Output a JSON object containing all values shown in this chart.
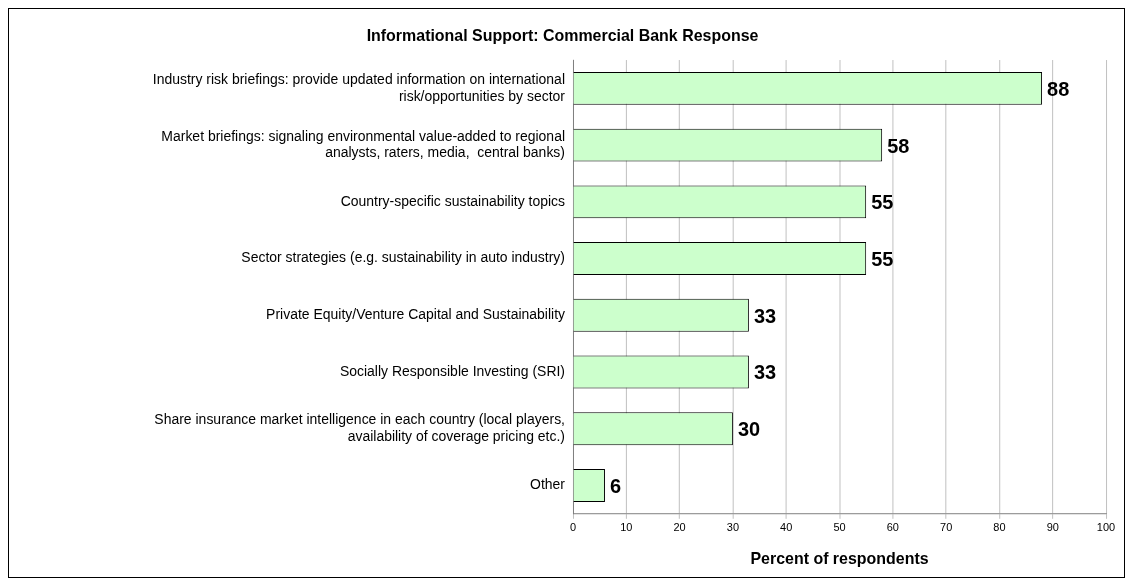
{
  "chart_data": {
    "type": "bar",
    "orientation": "horizontal",
    "title": "Informational Support: Commercial Bank Response",
    "xlabel": "Percent of respondents",
    "categories": [
      "Industry risk briefings: provide updated information on international risk/opportunities by sector",
      "Market briefings: signaling environmental value-added to regional analysts, raters, media,  central banks)",
      "Country-specific sustainability topics",
      "Sector strategies (e.g. sustainability in auto industry)",
      "Private Equity/Venture Capital and Sustainability",
      "Socially Responsible Investing (SRI)",
      "Share insurance market intelligence in each country (local players, availability of coverage pricing etc.)",
      "Other"
    ],
    "values": [
      88,
      58,
      55,
      55,
      33,
      33,
      30,
      6
    ],
    "color": "#ccffcc",
    "xlim": [
      0,
      100
    ],
    "xticks": [
      0,
      10,
      20,
      30,
      40,
      50,
      60,
      70,
      80,
      90,
      100
    ],
    "grid": "x",
    "legend": false,
    "data_labels": true
  }
}
